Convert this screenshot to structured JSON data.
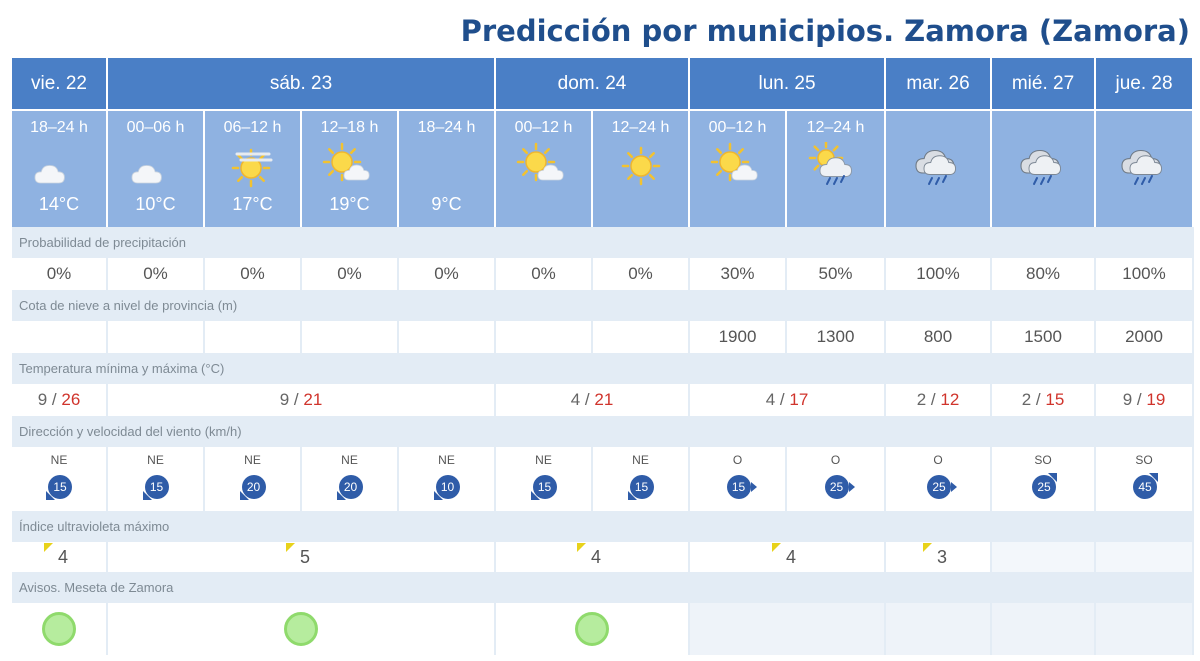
{
  "title": "Predicción por municipios. Zamora (Zamora)",
  "days": [
    {
      "label": "vie. 22"
    },
    {
      "label": "sáb. 23"
    },
    {
      "label": "dom. 24"
    },
    {
      "label": "lun. 25"
    },
    {
      "label": "mar. 26"
    },
    {
      "label": "mié. 27"
    },
    {
      "label": "jue. 28"
    }
  ],
  "periods": [
    {
      "label": "18–24 h",
      "icon": "moon-cloud-icon",
      "temp": "14°C",
      "precip": "0%",
      "snow": "",
      "wind_dir": "NE",
      "wind_speed": "15"
    },
    {
      "label": "00–06 h",
      "icon": "moon-cloud-icon",
      "temp": "10°C",
      "precip": "0%",
      "snow": "",
      "wind_dir": "NE",
      "wind_speed": "15"
    },
    {
      "label": "06–12 h",
      "icon": "sun-haze-icon",
      "temp": "17°C",
      "precip": "0%",
      "snow": "",
      "wind_dir": "NE",
      "wind_speed": "20"
    },
    {
      "label": "12–18 h",
      "icon": "sun-cloud-icon",
      "temp": "19°C",
      "precip": "0%",
      "snow": "",
      "wind_dir": "NE",
      "wind_speed": "20"
    },
    {
      "label": "18–24 h",
      "icon": "moon-icon",
      "temp": "9°C",
      "precip": "0%",
      "snow": "",
      "wind_dir": "NE",
      "wind_speed": "10"
    },
    {
      "label": "00–12 h",
      "icon": "sun-cloud-icon",
      "temp": "",
      "precip": "0%",
      "snow": "",
      "wind_dir": "NE",
      "wind_speed": "15"
    },
    {
      "label": "12–24 h",
      "icon": "sun-icon",
      "temp": "",
      "precip": "0%",
      "snow": "",
      "wind_dir": "NE",
      "wind_speed": "15"
    },
    {
      "label": "00–12 h",
      "icon": "sun-cloud-icon",
      "temp": "",
      "precip": "30%",
      "snow": "1900",
      "wind_dir": "O",
      "wind_speed": "15"
    },
    {
      "label": "12–24 h",
      "icon": "sun-cloud-rain-icon",
      "temp": "",
      "precip": "50%",
      "snow": "1300",
      "wind_dir": "O",
      "wind_speed": "25"
    },
    {
      "label": "",
      "icon": "rain-cloud-icon",
      "temp": "",
      "precip": "100%",
      "snow": "800",
      "wind_dir": "O",
      "wind_speed": "25"
    },
    {
      "label": "",
      "icon": "rain-cloud-icon",
      "temp": "",
      "precip": "80%",
      "snow": "1500",
      "wind_dir": "SO",
      "wind_speed": "25"
    },
    {
      "label": "",
      "icon": "rain-cloud-icon",
      "temp": "",
      "precip": "100%",
      "snow": "2000",
      "wind_dir": "SO",
      "wind_speed": "45"
    }
  ],
  "sections": {
    "precip": "Probabilidad de precipitación",
    "snow": "Cota de nieve a nivel de provincia (m)",
    "temp": "Temperatura mínima y máxima (°C)",
    "wind": "Dirección y velocidad del viento (km/h)",
    "uv": "Índice ultravioleta máximo",
    "warnings": "Avisos. Meseta de Zamora"
  },
  "minmax": [
    {
      "min": "9",
      "max": "26"
    },
    {
      "min": "9",
      "max": "21"
    },
    {
      "min": "4",
      "max": "21"
    },
    {
      "min": "4",
      "max": "17"
    },
    {
      "min": "2",
      "max": "12"
    },
    {
      "min": "2",
      "max": "15"
    },
    {
      "min": "9",
      "max": "19"
    }
  ],
  "uv": [
    "4",
    "5",
    "4",
    "4",
    "3",
    "",
    ""
  ],
  "warnings": [
    "green",
    "green",
    "green",
    "",
    "",
    "",
    ""
  ],
  "colors": {
    "header": "#4a7fc6",
    "period": "#8fb2e1",
    "section": "#e3ecf5",
    "tmax": "#d0342c",
    "wind": "#2f5ca8",
    "warning_green": "#b6ec9e",
    "uv_flag": "#e8d21a"
  }
}
